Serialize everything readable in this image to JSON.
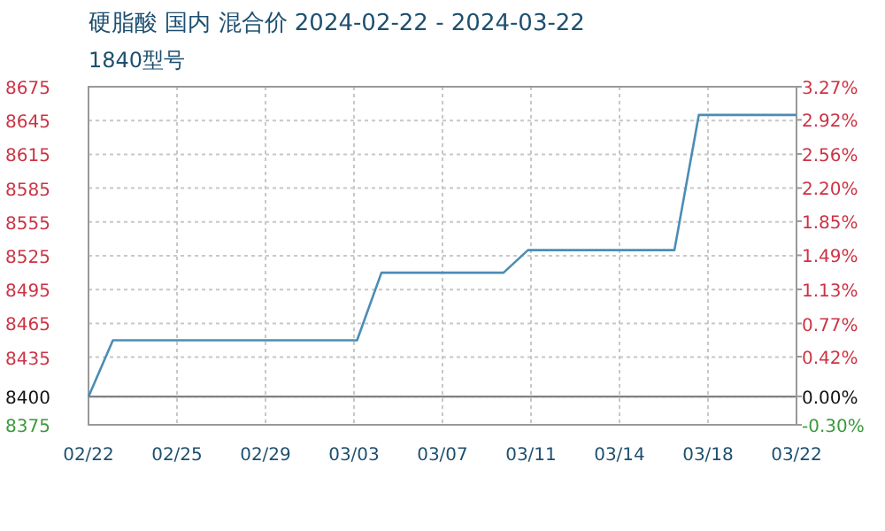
{
  "chart_data": {
    "type": "line",
    "title": "硬脂酸 国内 混合价 2024-02-22 - 2024-03-22",
    "subtitle": "1840型号",
    "x": [
      "2024-02-22",
      "2024-02-23",
      "2024-03-04",
      "2024-03-05",
      "2024-03-10",
      "2024-03-11",
      "2024-03-17",
      "2024-03-18",
      "2024-03-22"
    ],
    "series": [
      {
        "color": "#4a8db5",
        "values": [
          8400,
          8450,
          8450,
          8510,
          8510,
          8530,
          8530,
          8650,
          8650
        ]
      }
    ],
    "xlim": [
      "2024-02-22",
      "2024-03-22"
    ],
    "xticks": [
      {
        "value": "2024-02-22",
        "label": "02/22"
      },
      {
        "value": "2024-02-25T15:00",
        "label": "02/25"
      },
      {
        "value": "2024-02-29T06:00",
        "label": "02/29"
      },
      {
        "value": "2024-03-03T21:00",
        "label": "03/03"
      },
      {
        "value": "2024-03-07T12:00",
        "label": "03/07"
      },
      {
        "value": "2024-03-11T03:00",
        "label": "03/11"
      },
      {
        "value": "2024-03-14T18:00",
        "label": "03/14"
      },
      {
        "value": "2024-03-18T09:00",
        "label": "03/18"
      },
      {
        "value": "2024-03-22",
        "label": "03/22"
      }
    ],
    "ylim": [
      8375,
      8675
    ],
    "yticks": [
      8375,
      8400,
      8435,
      8465,
      8495,
      8525,
      8555,
      8585,
      8615,
      8645,
      8675
    ],
    "y2lim": [
      -0.3,
      3.27
    ],
    "y2ticks": [
      {
        "value": -0.3,
        "label": "-0.30%"
      },
      {
        "value": 0,
        "label": "0.00%"
      },
      {
        "value": 0.42,
        "label": "0.42%"
      },
      {
        "value": 0.77,
        "label": "0.77%"
      },
      {
        "value": 1.13,
        "label": "1.13%"
      },
      {
        "value": 1.49,
        "label": "1.49%"
      },
      {
        "value": 1.85,
        "label": "1.85%"
      },
      {
        "value": 2.2,
        "label": "2.20%"
      },
      {
        "value": 2.56,
        "label": "2.56%"
      },
      {
        "value": 2.92,
        "label": "2.92%"
      },
      {
        "value": 3.27,
        "label": "3.27%"
      }
    ],
    "ref_lines": [
      {
        "axis": "y",
        "value": 8400,
        "color": "#808080"
      }
    ],
    "grid": true,
    "marker": "none",
    "line_style": "solid"
  }
}
